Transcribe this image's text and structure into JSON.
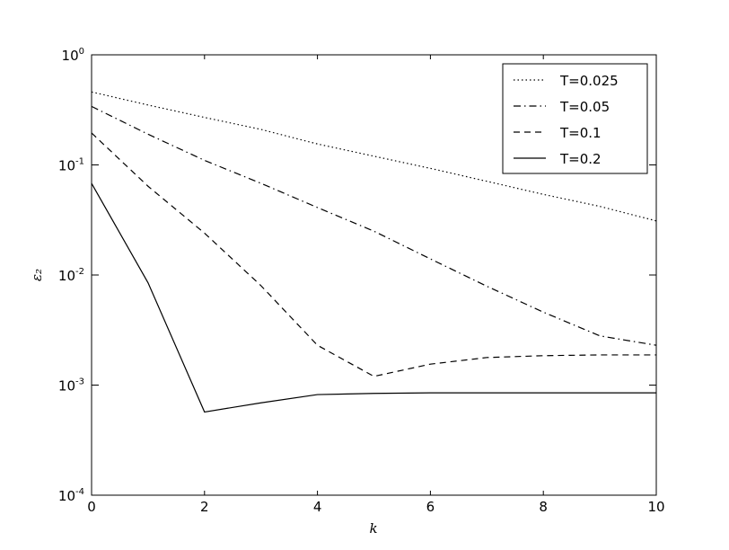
{
  "chart_data": {
    "type": "line",
    "x_label": "k",
    "y_label": "ε₂",
    "x": [
      0,
      1,
      2,
      3,
      4,
      5,
      6,
      7,
      8,
      9,
      10
    ],
    "xlim": [
      0,
      10
    ],
    "xticks": [
      0,
      2,
      4,
      6,
      8,
      10
    ],
    "ylim": [
      0.0001,
      1
    ],
    "yscale": "log",
    "yticks": [
      {
        "value": 0.0001,
        "label": "10",
        "exponent": "-4"
      },
      {
        "value": 0.001,
        "label": "10",
        "exponent": "-3"
      },
      {
        "value": 0.01,
        "label": "10",
        "exponent": "-2"
      },
      {
        "value": 0.1,
        "label": "10",
        "exponent": "-1"
      },
      {
        "value": 1,
        "label": "10",
        "exponent": "0"
      }
    ],
    "legend": "upper right",
    "series": [
      {
        "name": "T=0.025",
        "color": "#000000",
        "linestyle": "dotted",
        "values": [
          0.46,
          0.35,
          0.27,
          0.21,
          0.155,
          0.12,
          0.093,
          0.071,
          0.054,
          0.042,
          0.031
        ]
      },
      {
        "name": "T=0.05",
        "color": "#000000",
        "linestyle": "dashdot",
        "values": [
          0.34,
          0.19,
          0.11,
          0.068,
          0.041,
          0.025,
          0.014,
          0.0079,
          0.0046,
          0.0028,
          0.0023
        ]
      },
      {
        "name": "T=0.1",
        "color": "#000000",
        "linestyle": "dashed",
        "values": [
          0.195,
          0.064,
          0.024,
          0.008,
          0.0023,
          0.0012,
          0.00155,
          0.00178,
          0.00185,
          0.00188,
          0.00188
        ]
      },
      {
        "name": "T=0.2",
        "color": "#000000",
        "linestyle": "solid",
        "values": [
          0.068,
          0.0085,
          0.00057,
          0.00069,
          0.00082,
          0.00084,
          0.00085,
          0.00085,
          0.00085,
          0.00085,
          0.00085
        ]
      }
    ]
  }
}
